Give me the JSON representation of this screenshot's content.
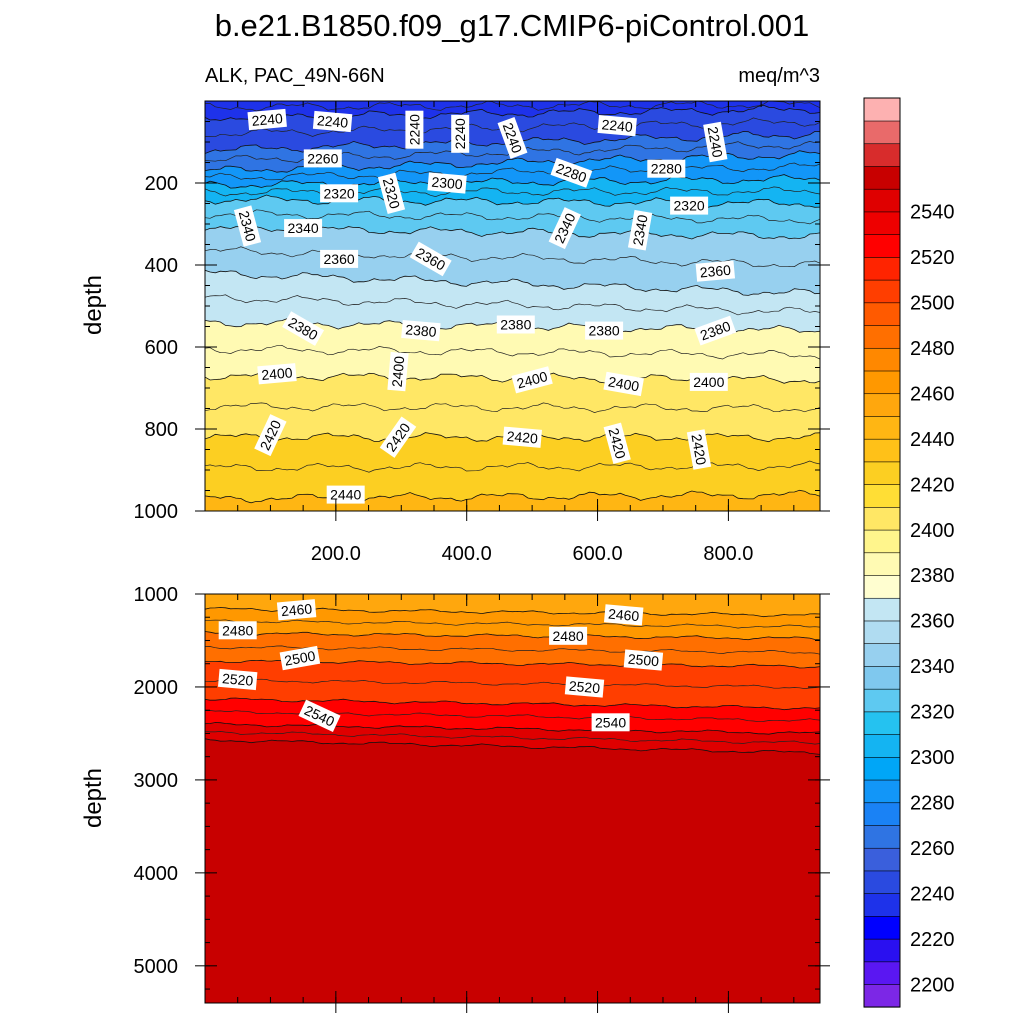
{
  "title": "b.e21.B1850.f09_g17.CMIP6-piControl.001",
  "chart_data": {
    "type": "contour",
    "variable": "ALK, PAC_49N-66N",
    "units": "meq/m^3",
    "xlabel": "",
    "ylabel": "depth",
    "xlim": [
      0,
      940
    ],
    "x_ticks": [
      "200.0",
      "400.0",
      "600.0",
      "800.0"
    ],
    "x_tick_values": [
      200,
      400,
      600,
      800
    ],
    "colorbar": {
      "levels": [
        2200,
        2210,
        2220,
        2230,
        2240,
        2250,
        2260,
        2270,
        2280,
        2290,
        2300,
        2310,
        2320,
        2330,
        2340,
        2350,
        2360,
        2370,
        2380,
        2390,
        2400,
        2410,
        2420,
        2430,
        2440,
        2450,
        2460,
        2470,
        2480,
        2490,
        2500,
        2510,
        2520,
        2530,
        2540,
        2550
      ],
      "labels": [
        "2540",
        "2520",
        "2500",
        "2480",
        "2460",
        "2440",
        "2420",
        "2400",
        "2380",
        "2360",
        "2340",
        "2320",
        "2300",
        "2280",
        "2260",
        "2240",
        "2220",
        "2200"
      ],
      "colors": [
        "#7c27e6",
        "#5a17f2",
        "#2a10f0",
        "#0000ff",
        "#1e32ea",
        "#2a4ae0",
        "#3a5fdc",
        "#2f74e3",
        "#1a82f5",
        "#1296f8",
        "#00a6f7",
        "#14b4f2",
        "#25c2f0",
        "#5ec9f1",
        "#7fc8ee",
        "#97d0ef",
        "#b0dcf1",
        "#c3e6f3",
        "#fffed0",
        "#fffab3",
        "#fff58c",
        "#ffe765",
        "#ffde35",
        "#fccf22",
        "#ffc118",
        "#ffb613",
        "#ffa70d",
        "#ff9800",
        "#ff8800",
        "#ff6f00",
        "#ff5a00",
        "#ff3e00",
        "#ff2400",
        "#ff0000",
        "#ee0000",
        "#df0000",
        "#c80000",
        "#d82c2c",
        "#e96a6a",
        "#fdb1b1"
      ]
    },
    "panels": [
      {
        "name": "upper",
        "ylim": [
          0,
          1000
        ],
        "y_ticks": [
          "200",
          "400",
          "600",
          "800",
          "1000"
        ],
        "y_tick_values": [
          200,
          400,
          600,
          800,
          1000
        ],
        "contours": [
          {
            "level": 2240,
            "depth_left": 40,
            "depth_right": 20
          },
          {
            "level": 2260,
            "depth_left": 120,
            "depth_right": 80
          },
          {
            "level": 2280,
            "depth_left": 170,
            "depth_right": 130
          },
          {
            "level": 2300,
            "depth_left": 205,
            "depth_right": 190
          },
          {
            "level": 2320,
            "depth_left": 240,
            "depth_right": 250
          },
          {
            "level": 2340,
            "depth_left": 310,
            "depth_right": 330
          },
          {
            "level": 2360,
            "depth_left": 420,
            "depth_right": 470
          },
          {
            "level": 2380,
            "depth_left": 540,
            "depth_right": 560
          },
          {
            "level": 2400,
            "depth_left": 670,
            "depth_right": 680
          },
          {
            "level": 2420,
            "depth_left": 820,
            "depth_right": 820
          },
          {
            "level": 2440,
            "depth_left": 970,
            "depth_right": 960
          }
        ],
        "labels": [
          {
            "text": "2240",
            "x": 95,
            "depth": 45,
            "rot": -5
          },
          {
            "text": "2240",
            "x": 195,
            "depth": 50,
            "rot": 5
          },
          {
            "text": "2240",
            "x": 320,
            "depth": 70,
            "rot": -90
          },
          {
            "text": "2240",
            "x": 390,
            "depth": 80,
            "rot": -90
          },
          {
            "text": "2240",
            "x": 470,
            "depth": 90,
            "rot": 70
          },
          {
            "text": "2240",
            "x": 630,
            "depth": 60,
            "rot": 5
          },
          {
            "text": "2240",
            "x": 780,
            "depth": 100,
            "rot": 80
          },
          {
            "text": "2260",
            "x": 180,
            "depth": 140,
            "rot": 0
          },
          {
            "text": "2280",
            "x": 560,
            "depth": 175,
            "rot": 20
          },
          {
            "text": "2280",
            "x": 705,
            "depth": 165,
            "rot": 0
          },
          {
            "text": "2300",
            "x": 370,
            "depth": 200,
            "rot": 5
          },
          {
            "text": "2320",
            "x": 205,
            "depth": 225,
            "rot": 0
          },
          {
            "text": "2320",
            "x": 285,
            "depth": 225,
            "rot": 75
          },
          {
            "text": "2320",
            "x": 740,
            "depth": 255,
            "rot": 0
          },
          {
            "text": "2340",
            "x": 65,
            "depth": 305,
            "rot": 75
          },
          {
            "text": "2340",
            "x": 150,
            "depth": 310,
            "rot": 0
          },
          {
            "text": "2340",
            "x": 550,
            "depth": 310,
            "rot": -65
          },
          {
            "text": "2340",
            "x": 665,
            "depth": 315,
            "rot": -80
          },
          {
            "text": "2360",
            "x": 205,
            "depth": 385,
            "rot": 0
          },
          {
            "text": "2360",
            "x": 345,
            "depth": 385,
            "rot": 30
          },
          {
            "text": "2360",
            "x": 780,
            "depth": 415,
            "rot": -5
          },
          {
            "text": "2380",
            "x": 150,
            "depth": 555,
            "rot": 30
          },
          {
            "text": "2380",
            "x": 330,
            "depth": 560,
            "rot": 5
          },
          {
            "text": "2380",
            "x": 475,
            "depth": 545,
            "rot": 0
          },
          {
            "text": "2380",
            "x": 610,
            "depth": 560,
            "rot": 0
          },
          {
            "text": "2380",
            "x": 780,
            "depth": 560,
            "rot": -20
          },
          {
            "text": "2400",
            "x": 110,
            "depth": 665,
            "rot": -5
          },
          {
            "text": "2400",
            "x": 295,
            "depth": 660,
            "rot": -85
          },
          {
            "text": "2400",
            "x": 500,
            "depth": 680,
            "rot": -15
          },
          {
            "text": "2400",
            "x": 640,
            "depth": 690,
            "rot": 10
          },
          {
            "text": "2400",
            "x": 770,
            "depth": 685,
            "rot": 0
          },
          {
            "text": "2420",
            "x": 100,
            "depth": 815,
            "rot": -65
          },
          {
            "text": "2420",
            "x": 295,
            "depth": 820,
            "rot": -55
          },
          {
            "text": "2420",
            "x": 485,
            "depth": 820,
            "rot": 5
          },
          {
            "text": "2420",
            "x": 630,
            "depth": 835,
            "rot": 75
          },
          {
            "text": "2420",
            "x": 755,
            "depth": 850,
            "rot": 80
          },
          {
            "text": "2440",
            "x": 215,
            "depth": 960,
            "rot": 0
          }
        ]
      },
      {
        "name": "lower",
        "ylim": [
          1000,
          5400
        ],
        "y_ticks": [
          "1000",
          "2000",
          "3000",
          "4000",
          "5000"
        ],
        "y_tick_values": [
          1000,
          2000,
          3000,
          4000,
          5000
        ],
        "contours": [
          {
            "level": 2460,
            "depth_left": 1160,
            "depth_right": 1230
          },
          {
            "level": 2480,
            "depth_left": 1420,
            "depth_right": 1480
          },
          {
            "level": 2500,
            "depth_left": 1720,
            "depth_right": 1780
          },
          {
            "level": 2520,
            "depth_left": 2130,
            "depth_right": 2230
          },
          {
            "level": 2540,
            "depth_left": 2400,
            "depth_right": 2500
          },
          {
            "level": 2550,
            "depth_left": 2570,
            "depth_right": 2710
          }
        ],
        "labels": [
          {
            "text": "2460",
            "x": 140,
            "depth": 1170,
            "rot": -5
          },
          {
            "text": "2460",
            "x": 640,
            "depth": 1225,
            "rot": 5
          },
          {
            "text": "2480",
            "x": 50,
            "depth": 1390,
            "rot": 0
          },
          {
            "text": "2480",
            "x": 555,
            "depth": 1450,
            "rot": 0
          },
          {
            "text": "2500",
            "x": 145,
            "depth": 1690,
            "rot": -10
          },
          {
            "text": "2500",
            "x": 670,
            "depth": 1710,
            "rot": 5
          },
          {
            "text": "2520",
            "x": 50,
            "depth": 1920,
            "rot": 5
          },
          {
            "text": "2520",
            "x": 580,
            "depth": 2000,
            "rot": 5
          },
          {
            "text": "2540",
            "x": 175,
            "depth": 2310,
            "rot": 25
          },
          {
            "text": "2540",
            "x": 620,
            "depth": 2380,
            "rot": 0
          }
        ]
      }
    ]
  }
}
